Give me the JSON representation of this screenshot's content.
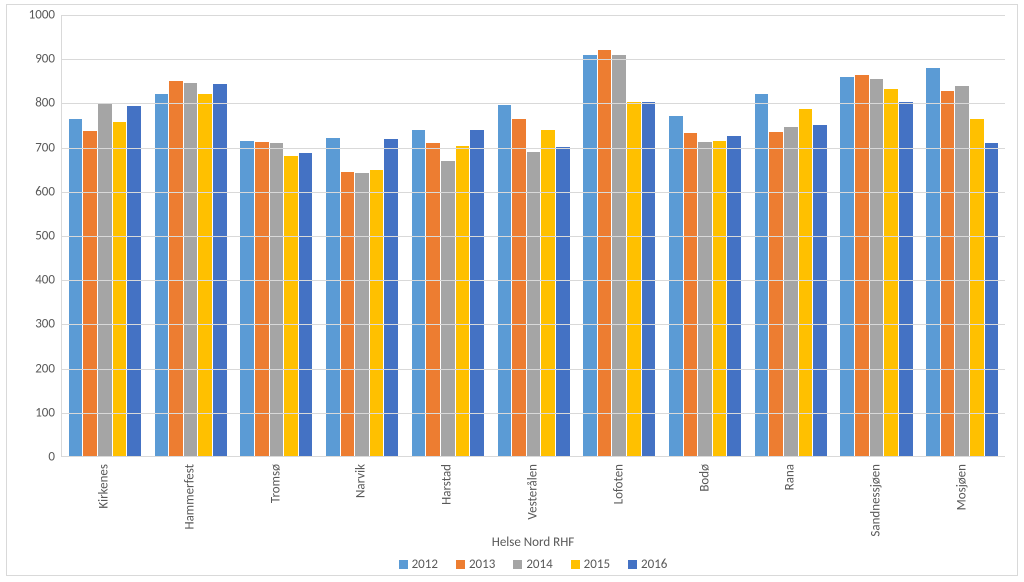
{
  "chart": {
    "type": "bar",
    "background_color": "#ffffff",
    "grid_color": "#d9d9d9",
    "border_color": "#d9d9d9",
    "label_color": "#595959",
    "label_fontsize": 13,
    "ylim_min": 0,
    "ylim_max": 1000,
    "ytick_step": 100,
    "yticks": [
      0,
      100,
      200,
      300,
      400,
      500,
      600,
      700,
      800,
      900,
      1000
    ],
    "x_axis_title": "Helse Nord RHF",
    "categories": [
      "Kirkenes",
      "Hammerfest",
      "Tromsø",
      "Narvik",
      "Harstad",
      "Vesterålen",
      "Lofoten",
      "Bodø",
      "Rana",
      "Sandnessjøen",
      "Mosjøen"
    ],
    "series": [
      {
        "name": "2012",
        "color": "#5b9bd5",
        "values": [
          765,
          820,
          715,
          720,
          740,
          795,
          910,
          770,
          820,
          860,
          880
        ]
      },
      {
        "name": "2013",
        "color": "#ed7d31",
        "values": [
          738,
          850,
          713,
          644,
          710,
          765,
          920,
          733,
          735,
          865,
          828
        ]
      },
      {
        "name": "2014",
        "color": "#a5a5a5",
        "values": [
          798,
          845,
          710,
          641,
          670,
          690,
          910,
          713,
          745,
          855,
          838
        ]
      },
      {
        "name": "2015",
        "color": "#ffc000",
        "values": [
          758,
          820,
          680,
          648,
          703,
          740,
          802,
          715,
          786,
          832,
          765
        ]
      },
      {
        "name": "2016",
        "color": "#4472c4",
        "values": [
          793,
          843,
          688,
          718,
          740,
          700,
          803,
          725,
          750,
          803,
          710
        ]
      }
    ],
    "legend_position": "bottom",
    "bar_group_inner_pad": 0.08
  }
}
